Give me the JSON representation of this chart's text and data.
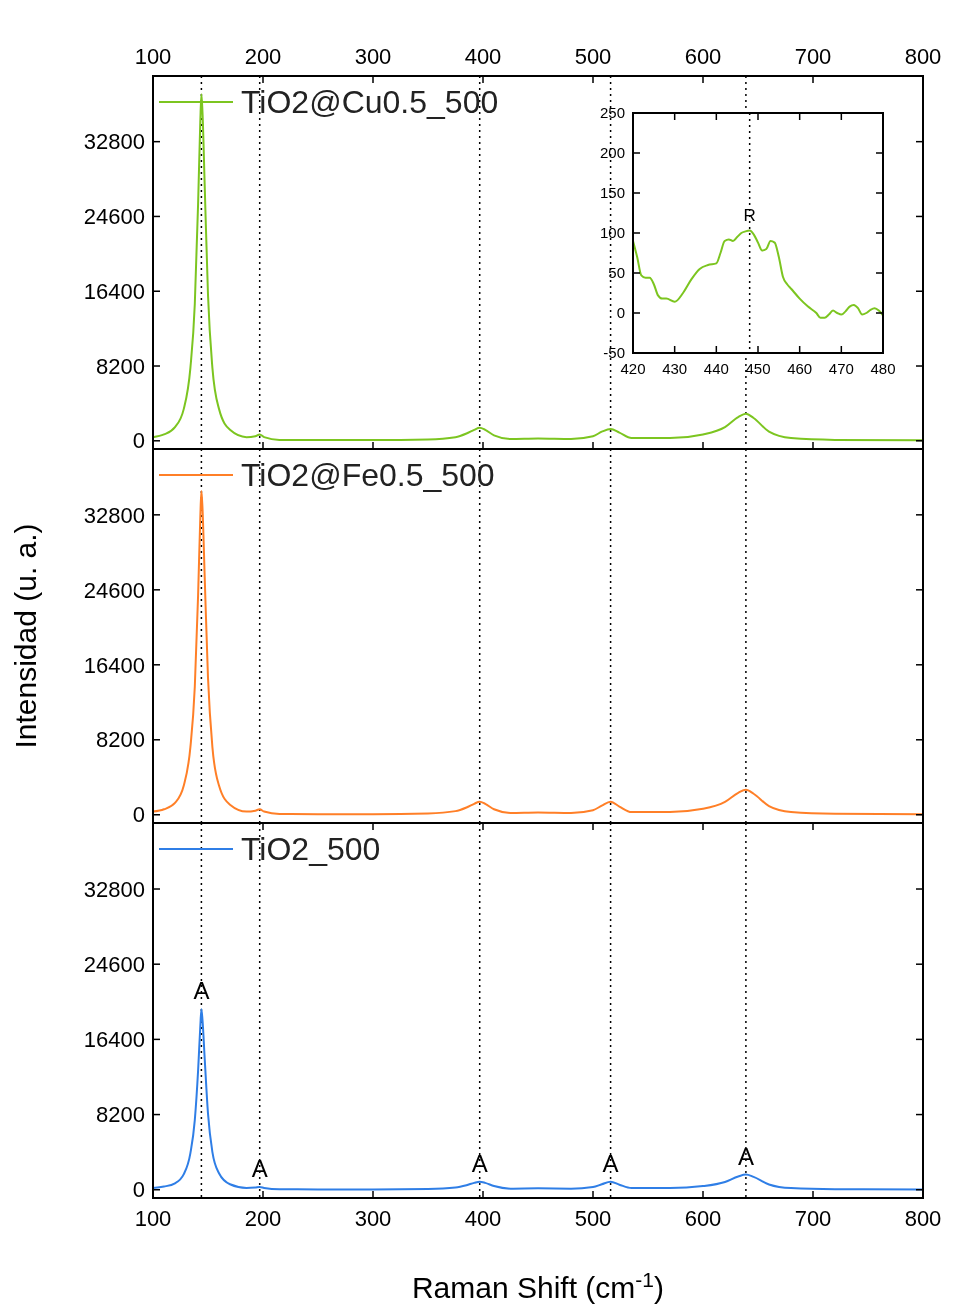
{
  "chart_data": [
    {
      "type": "line",
      "xlim": [
        100,
        800
      ],
      "x2lim": [
        100,
        800
      ],
      "x2ticks": [
        100,
        200,
        300,
        400,
        500,
        600,
        700,
        800
      ],
      "ylim": [
        -900,
        40000
      ],
      "yticks": [
        0,
        8200,
        16400,
        24600,
        32800
      ],
      "tick_labels": "y",
      "legend": "top left",
      "line_style": "solid",
      "series": [
        {
          "name": "TiO2@Cu0.5_500",
          "color": "#7cc520",
          "x": [
            100,
            110,
            120,
            128,
            134,
            138,
            141,
            143,
            144,
            145,
            147,
            150,
            154,
            160,
            170,
            185,
            193,
            197,
            201,
            215,
            250,
            300,
            350,
            375,
            385,
            392,
            397,
            402,
            410,
            425,
            450,
            480,
            500,
            508,
            516,
            524,
            535,
            570,
            600,
            620,
            632,
            639,
            646,
            660,
            680,
            720,
            800
          ],
          "values": [
            400,
            700,
            1500,
            3500,
            8000,
            15000,
            26000,
            35000,
            38000,
            36000,
            28000,
            16000,
            8000,
            3500,
            1200,
            400,
            500,
            700,
            400,
            100,
            80,
            80,
            150,
            400,
            800,
            1200,
            1430,
            1200,
            600,
            200,
            250,
            200,
            500,
            1000,
            1300,
            900,
            300,
            300,
            700,
            1500,
            2600,
            2960,
            2500,
            1000,
            300,
            100,
            50
          ]
        }
      ],
      "ref_lines": [
        {
          "axis": "x",
          "value": 144
        },
        {
          "axis": "x",
          "value": 197
        },
        {
          "axis": "x",
          "value": 397
        },
        {
          "axis": "x",
          "value": 516
        },
        {
          "axis": "x",
          "value": 639
        }
      ]
    },
    {
      "type": "line",
      "xlim": [
        100,
        800
      ],
      "ylim": [
        -900,
        40000
      ],
      "yticks": [
        0,
        8200,
        16400,
        24600,
        32800
      ],
      "tick_labels": "y",
      "legend": "top left",
      "line_style": "solid",
      "ylabel": "Intensidad (u. a.)",
      "series": [
        {
          "name": "TiO2@Fe0.5_500",
          "color": "#ff7f27",
          "x": [
            100,
            110,
            120,
            128,
            134,
            138,
            141,
            143,
            144,
            145,
            147,
            150,
            154,
            160,
            170,
            185,
            193,
            197,
            201,
            215,
            250,
            300,
            350,
            375,
            385,
            392,
            397,
            402,
            410,
            425,
            450,
            480,
            500,
            508,
            516,
            524,
            535,
            570,
            600,
            620,
            632,
            639,
            646,
            660,
            680,
            720,
            800
          ],
          "values": [
            350,
            600,
            1300,
            3200,
            7400,
            14000,
            24000,
            32500,
            35400,
            33500,
            26000,
            15000,
            7400,
            3200,
            1100,
            350,
            450,
            600,
            350,
            90,
            70,
            70,
            150,
            400,
            800,
            1200,
            1430,
            1200,
            600,
            200,
            250,
            200,
            500,
            1000,
            1430,
            900,
            300,
            300,
            650,
            1400,
            2400,
            2740,
            2300,
            950,
            300,
            100,
            50
          ]
        }
      ],
      "ref_lines": [
        {
          "axis": "x",
          "value": 144
        },
        {
          "axis": "x",
          "value": 197
        },
        {
          "axis": "x",
          "value": 397
        },
        {
          "axis": "x",
          "value": 516
        },
        {
          "axis": "x",
          "value": 639
        }
      ]
    },
    {
      "type": "line",
      "xlim": [
        100,
        800
      ],
      "xticks": [
        100,
        200,
        300,
        400,
        500,
        600,
        700,
        800
      ],
      "ylim": [
        -900,
        40000
      ],
      "yticks": [
        0,
        8200,
        16400,
        24600,
        32800
      ],
      "legend": "top left",
      "line_style": "solid",
      "xlabel": "Raman Shift (cm$^{-1}$)",
      "series": [
        {
          "name": "TiO2_500",
          "color": "#2f7ee6",
          "x": [
            100,
            110,
            120,
            128,
            134,
            138,
            141,
            143,
            144,
            145,
            147,
            150,
            154,
            160,
            170,
            185,
            193,
            197,
            201,
            215,
            250,
            300,
            350,
            375,
            385,
            392,
            397,
            402,
            410,
            425,
            450,
            480,
            500,
            508,
            516,
            524,
            535,
            570,
            600,
            620,
            632,
            639,
            646,
            660,
            680,
            720,
            800
          ],
          "values": [
            200,
            350,
            700,
            1700,
            4000,
            7600,
            13000,
            17800,
            19700,
            18500,
            14300,
            8300,
            4100,
            1800,
            600,
            200,
            250,
            300,
            200,
            50,
            40,
            40,
            90,
            250,
            500,
            750,
            880,
            750,
            400,
            120,
            150,
            120,
            300,
            600,
            880,
            550,
            180,
            180,
            400,
            850,
            1450,
            1650,
            1400,
            580,
            180,
            60,
            30
          ]
        }
      ],
      "ref_lines": [
        {
          "axis": "x",
          "value": 144
        },
        {
          "axis": "x",
          "value": 197
        },
        {
          "axis": "x",
          "value": 397
        },
        {
          "axis": "x",
          "value": 516
        },
        {
          "axis": "x",
          "value": 639
        }
      ],
      "annotations": [
        {
          "text": "A",
          "x": 144,
          "y": 19700
        },
        {
          "text": "A",
          "x": 197,
          "y": 300
        },
        {
          "text": "A",
          "x": 397,
          "y": 880
        },
        {
          "text": "A",
          "x": 516,
          "y": 880
        },
        {
          "text": "A",
          "x": 639,
          "y": 1650
        }
      ]
    },
    {
      "type": "line",
      "xlim": [
        420,
        480
      ],
      "xticks": [
        420,
        430,
        440,
        450,
        460,
        470,
        480
      ],
      "ylim": [
        -50,
        250
      ],
      "yticks": [
        -50,
        0,
        50,
        100,
        150,
        200,
        250
      ],
      "line_style": "solid",
      "series": [
        {
          "color": "#7cc520",
          "x": [
            420,
            421,
            422,
            423,
            424,
            425,
            426,
            427,
            428,
            430,
            432,
            434,
            436,
            438,
            440,
            441,
            442,
            443,
            444,
            445,
            446,
            447,
            448,
            449,
            450,
            451,
            452,
            453,
            454,
            455,
            456,
            457,
            458,
            460,
            462,
            464,
            465,
            466,
            467,
            468,
            469,
            470,
            471,
            472,
            473,
            474,
            475,
            476,
            477,
            478,
            479,
            480
          ],
          "values": [
            90,
            70,
            47,
            44,
            44,
            36,
            22,
            18,
            18,
            14,
            25,
            42,
            55,
            60,
            62,
            75,
            90,
            92,
            90,
            95,
            100,
            102,
            103,
            98,
            88,
            78,
            80,
            90,
            88,
            70,
            45,
            36,
            30,
            18,
            8,
            0,
            -6,
            -6,
            -2,
            3,
            0,
            -2,
            2,
            8,
            10,
            6,
            -2,
            0,
            4,
            6,
            3,
            -3
          ]
        }
      ],
      "ref_lines": [
        {
          "axis": "x",
          "value": 448
        }
      ],
      "annotations": [
        {
          "text": "R",
          "x": 448,
          "y": 103
        }
      ]
    }
  ]
}
